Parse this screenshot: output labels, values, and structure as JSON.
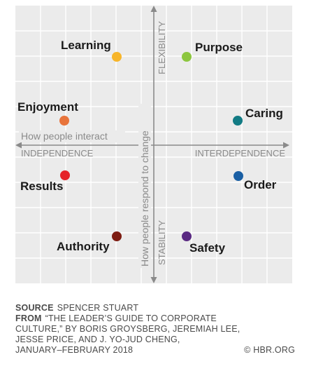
{
  "axes": {
    "horizontal_caption": "How people interact",
    "vertical_caption": "How people respond to change",
    "left": "INDEPENDENCE",
    "right": "INTERDEPENDENCE",
    "top": "FLEXIBILITY",
    "bottom": "STABILITY"
  },
  "styles": [
    {
      "label": "Learning",
      "color": "#f7b52a"
    },
    {
      "label": "Purpose",
      "color": "#8cc63f"
    },
    {
      "label": "Enjoyment",
      "color": "#e8743b"
    },
    {
      "label": "Caring",
      "color": "#127b84"
    },
    {
      "label": "Results",
      "color": "#e52329"
    },
    {
      "label": "Order",
      "color": "#1a5fa4"
    },
    {
      "label": "Authority",
      "color": "#7d1c12"
    },
    {
      "label": "Safety",
      "color": "#5a2a82"
    }
  ],
  "colors": {
    "panel": "#ebebeb",
    "grid": "#ffffff",
    "axis": "#8a8a8a",
    "axis_text": "#8a8a8a",
    "label_text": "#1a1a1a"
  },
  "footer": {
    "source_label": "SOURCE",
    "source_text": "SPENCER STUART",
    "from_label": "FROM",
    "from_lines": [
      "“THE LEADER’S GUIDE TO CORPORATE",
      "CULTURE,” BY BORIS GROYSBERG, JEREMIAH LEE,",
      "JESSE PRICE, AND J. YO-JUD CHENG,",
      "JANUARY–FEBRUARY 2018"
    ],
    "credit": "© HBR.ORG"
  }
}
